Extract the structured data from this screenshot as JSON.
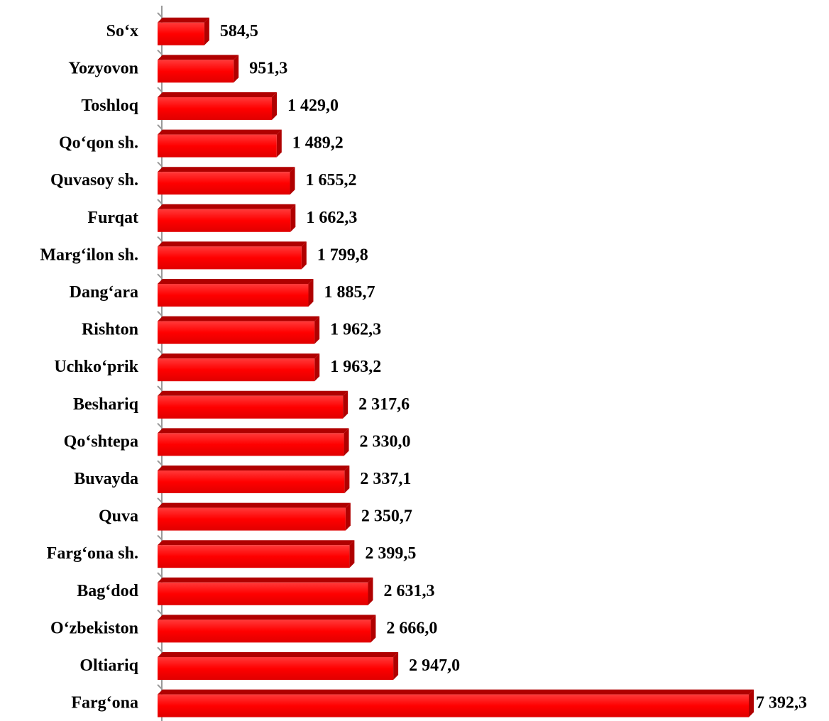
{
  "chart_data": {
    "type": "bar",
    "orientation": "horizontal",
    "categories": [
      "So‘x",
      "Yozyovon",
      "Toshloq",
      "Qo‘qon sh.",
      "Quvasoy sh.",
      "Furqat",
      "Marg‘ilon sh.",
      "Dang‘ara",
      "Rishton",
      "Uchko‘prik",
      "Beshariq",
      "Qo‘shtepa",
      "Buvayda",
      "Quva",
      "Farg‘ona sh.",
      "Bag‘dod",
      "O‘zbekiston",
      "Oltiariq",
      "Farg‘ona"
    ],
    "values": [
      584.5,
      951.3,
      1429.0,
      1489.2,
      1655.2,
      1662.3,
      1799.8,
      1885.7,
      1962.3,
      1963.2,
      2317.6,
      2330.0,
      2337.1,
      2350.7,
      2399.5,
      2631.3,
      2666.0,
      2947.0,
      7392.3
    ],
    "value_labels": [
      "584,5",
      "951,3",
      "1 429,0",
      "1 489,2",
      "1 655,2",
      "1 662,3",
      "1 799,8",
      "1 885,7",
      "1 962,3",
      "1 963,2",
      "2 317,6",
      "2 330,0",
      "2 337,1",
      "2 350,7",
      "2 399,5",
      "2 631,3",
      "2 666,0",
      "2 947,0",
      "7 392,3"
    ],
    "color": "#ff0000",
    "side_color": "#b00000"
  }
}
